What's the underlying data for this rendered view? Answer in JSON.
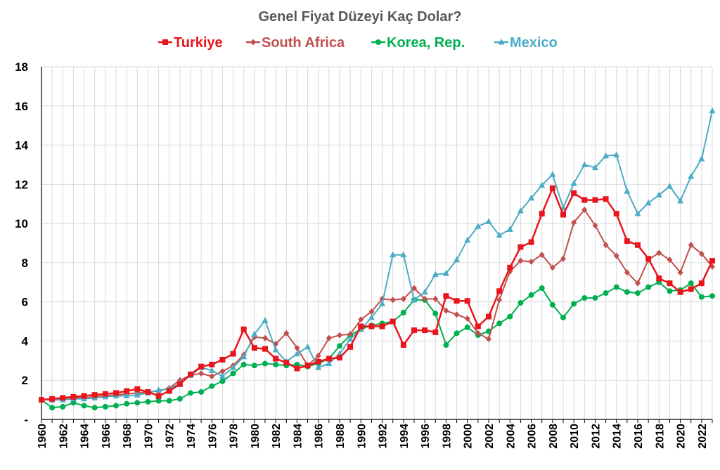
{
  "chart_data": {
    "type": "line",
    "title": "Genel Fiyat Düzeyi Kaç Dolar?",
    "xlabel": "",
    "ylabel": "",
    "xlim": [
      1960,
      2023
    ],
    "ylim": [
      0,
      18
    ],
    "yticks": [
      0,
      2,
      4,
      6,
      8,
      10,
      12,
      14,
      16,
      18
    ],
    "ytick_labels": [
      "-",
      "2",
      "4",
      "6",
      "8",
      "10",
      "12",
      "14",
      "16",
      "18"
    ],
    "xtick_labels": [
      "1960",
      "1962",
      "1964",
      "1966",
      "1968",
      "1970",
      "1972",
      "1974",
      "1976",
      "1978",
      "1980",
      "1982",
      "1984",
      "1986",
      "1988",
      "1990",
      "1992",
      "1994",
      "1996",
      "1998",
      "2000",
      "2002",
      "2004",
      "2006",
      "2008",
      "2010",
      "2012",
      "2014",
      "2016",
      "2018",
      "2020",
      "2022"
    ],
    "grid": true,
    "legend_position": "top",
    "series": [
      {
        "name": "Turkiye",
        "color": "#E8151B",
        "marker": "square",
        "values": [
          1.0,
          1.05,
          1.1,
          1.15,
          1.2,
          1.25,
          1.3,
          1.35,
          1.45,
          1.55,
          1.4,
          1.2,
          1.45,
          1.8,
          2.3,
          2.7,
          2.8,
          3.05,
          3.35,
          4.6,
          3.65,
          3.6,
          3.1,
          2.9,
          2.6,
          2.75,
          2.95,
          3.1,
          3.15,
          3.7,
          4.75,
          4.75,
          4.75,
          5.0,
          3.8,
          4.55,
          4.55,
          4.45,
          6.3,
          6.05,
          6.05,
          4.75,
          5.25,
          6.55,
          7.75,
          8.8,
          9.05,
          10.5,
          11.8,
          10.45,
          11.55,
          11.2,
          11.2,
          11.25,
          10.5,
          9.1,
          8.9,
          8.2,
          7.2,
          6.95,
          6.5,
          6.65,
          6.95,
          8.1
        ]
      },
      {
        "name": "South Africa",
        "color": "#C0504D",
        "marker": "diamond",
        "values": [
          1.0,
          1.0,
          1.05,
          1.1,
          1.1,
          1.15,
          1.2,
          1.25,
          1.3,
          1.35,
          1.4,
          1.45,
          1.6,
          2.0,
          2.25,
          2.35,
          2.2,
          2.45,
          2.75,
          3.3,
          4.2,
          4.15,
          3.85,
          4.4,
          3.65,
          2.75,
          3.25,
          4.15,
          4.3,
          4.35,
          5.1,
          5.5,
          6.15,
          6.1,
          6.15,
          6.7,
          6.15,
          6.15,
          5.55,
          5.35,
          5.15,
          4.4,
          4.1,
          6.1,
          7.55,
          8.1,
          8.05,
          8.4,
          7.75,
          8.2,
          10.05,
          10.7,
          9.9,
          8.9,
          8.35,
          7.5,
          6.95,
          8.15,
          8.5,
          8.15,
          7.5,
          8.9,
          8.45,
          7.8
        ]
      },
      {
        "name": "Korea, Rep.",
        "color": "#00B050",
        "marker": "circle",
        "values": [
          1.0,
          0.6,
          0.65,
          0.85,
          0.7,
          0.6,
          0.65,
          0.7,
          0.8,
          0.85,
          0.9,
          0.95,
          0.95,
          1.05,
          1.35,
          1.4,
          1.7,
          1.95,
          2.35,
          2.8,
          2.75,
          2.85,
          2.8,
          2.75,
          2.8,
          2.7,
          2.85,
          3.1,
          3.75,
          4.3,
          4.6,
          4.8,
          4.9,
          5.0,
          5.45,
          6.1,
          6.1,
          5.4,
          3.8,
          4.4,
          4.7,
          4.3,
          4.5,
          4.9,
          5.25,
          5.95,
          6.35,
          6.7,
          5.85,
          5.2,
          5.9,
          6.2,
          6.2,
          6.45,
          6.75,
          6.5,
          6.45,
          6.75,
          7.0,
          6.55,
          6.6,
          6.95,
          6.25,
          6.3
        ]
      },
      {
        "name": "Mexico",
        "color": "#4BACC6",
        "marker": "triangle",
        "values": [
          1.0,
          1.0,
          1.0,
          1.05,
          1.05,
          1.1,
          1.15,
          1.2,
          1.2,
          1.25,
          1.35,
          1.5,
          1.55,
          1.85,
          2.25,
          2.65,
          2.5,
          2.2,
          2.65,
          3.2,
          4.35,
          5.05,
          3.55,
          2.95,
          3.35,
          3.7,
          2.65,
          2.85,
          3.35,
          4.1,
          4.6,
          5.2,
          5.9,
          8.4,
          8.4,
          6.1,
          6.5,
          7.4,
          7.45,
          8.15,
          9.15,
          9.85,
          10.1,
          9.4,
          9.7,
          10.65,
          11.3,
          11.95,
          12.5,
          10.8,
          12.05,
          13.0,
          12.85,
          13.45,
          13.5,
          11.65,
          10.5,
          11.05,
          11.45,
          11.9,
          11.15,
          12.4,
          13.3,
          15.75
        ]
      }
    ]
  }
}
